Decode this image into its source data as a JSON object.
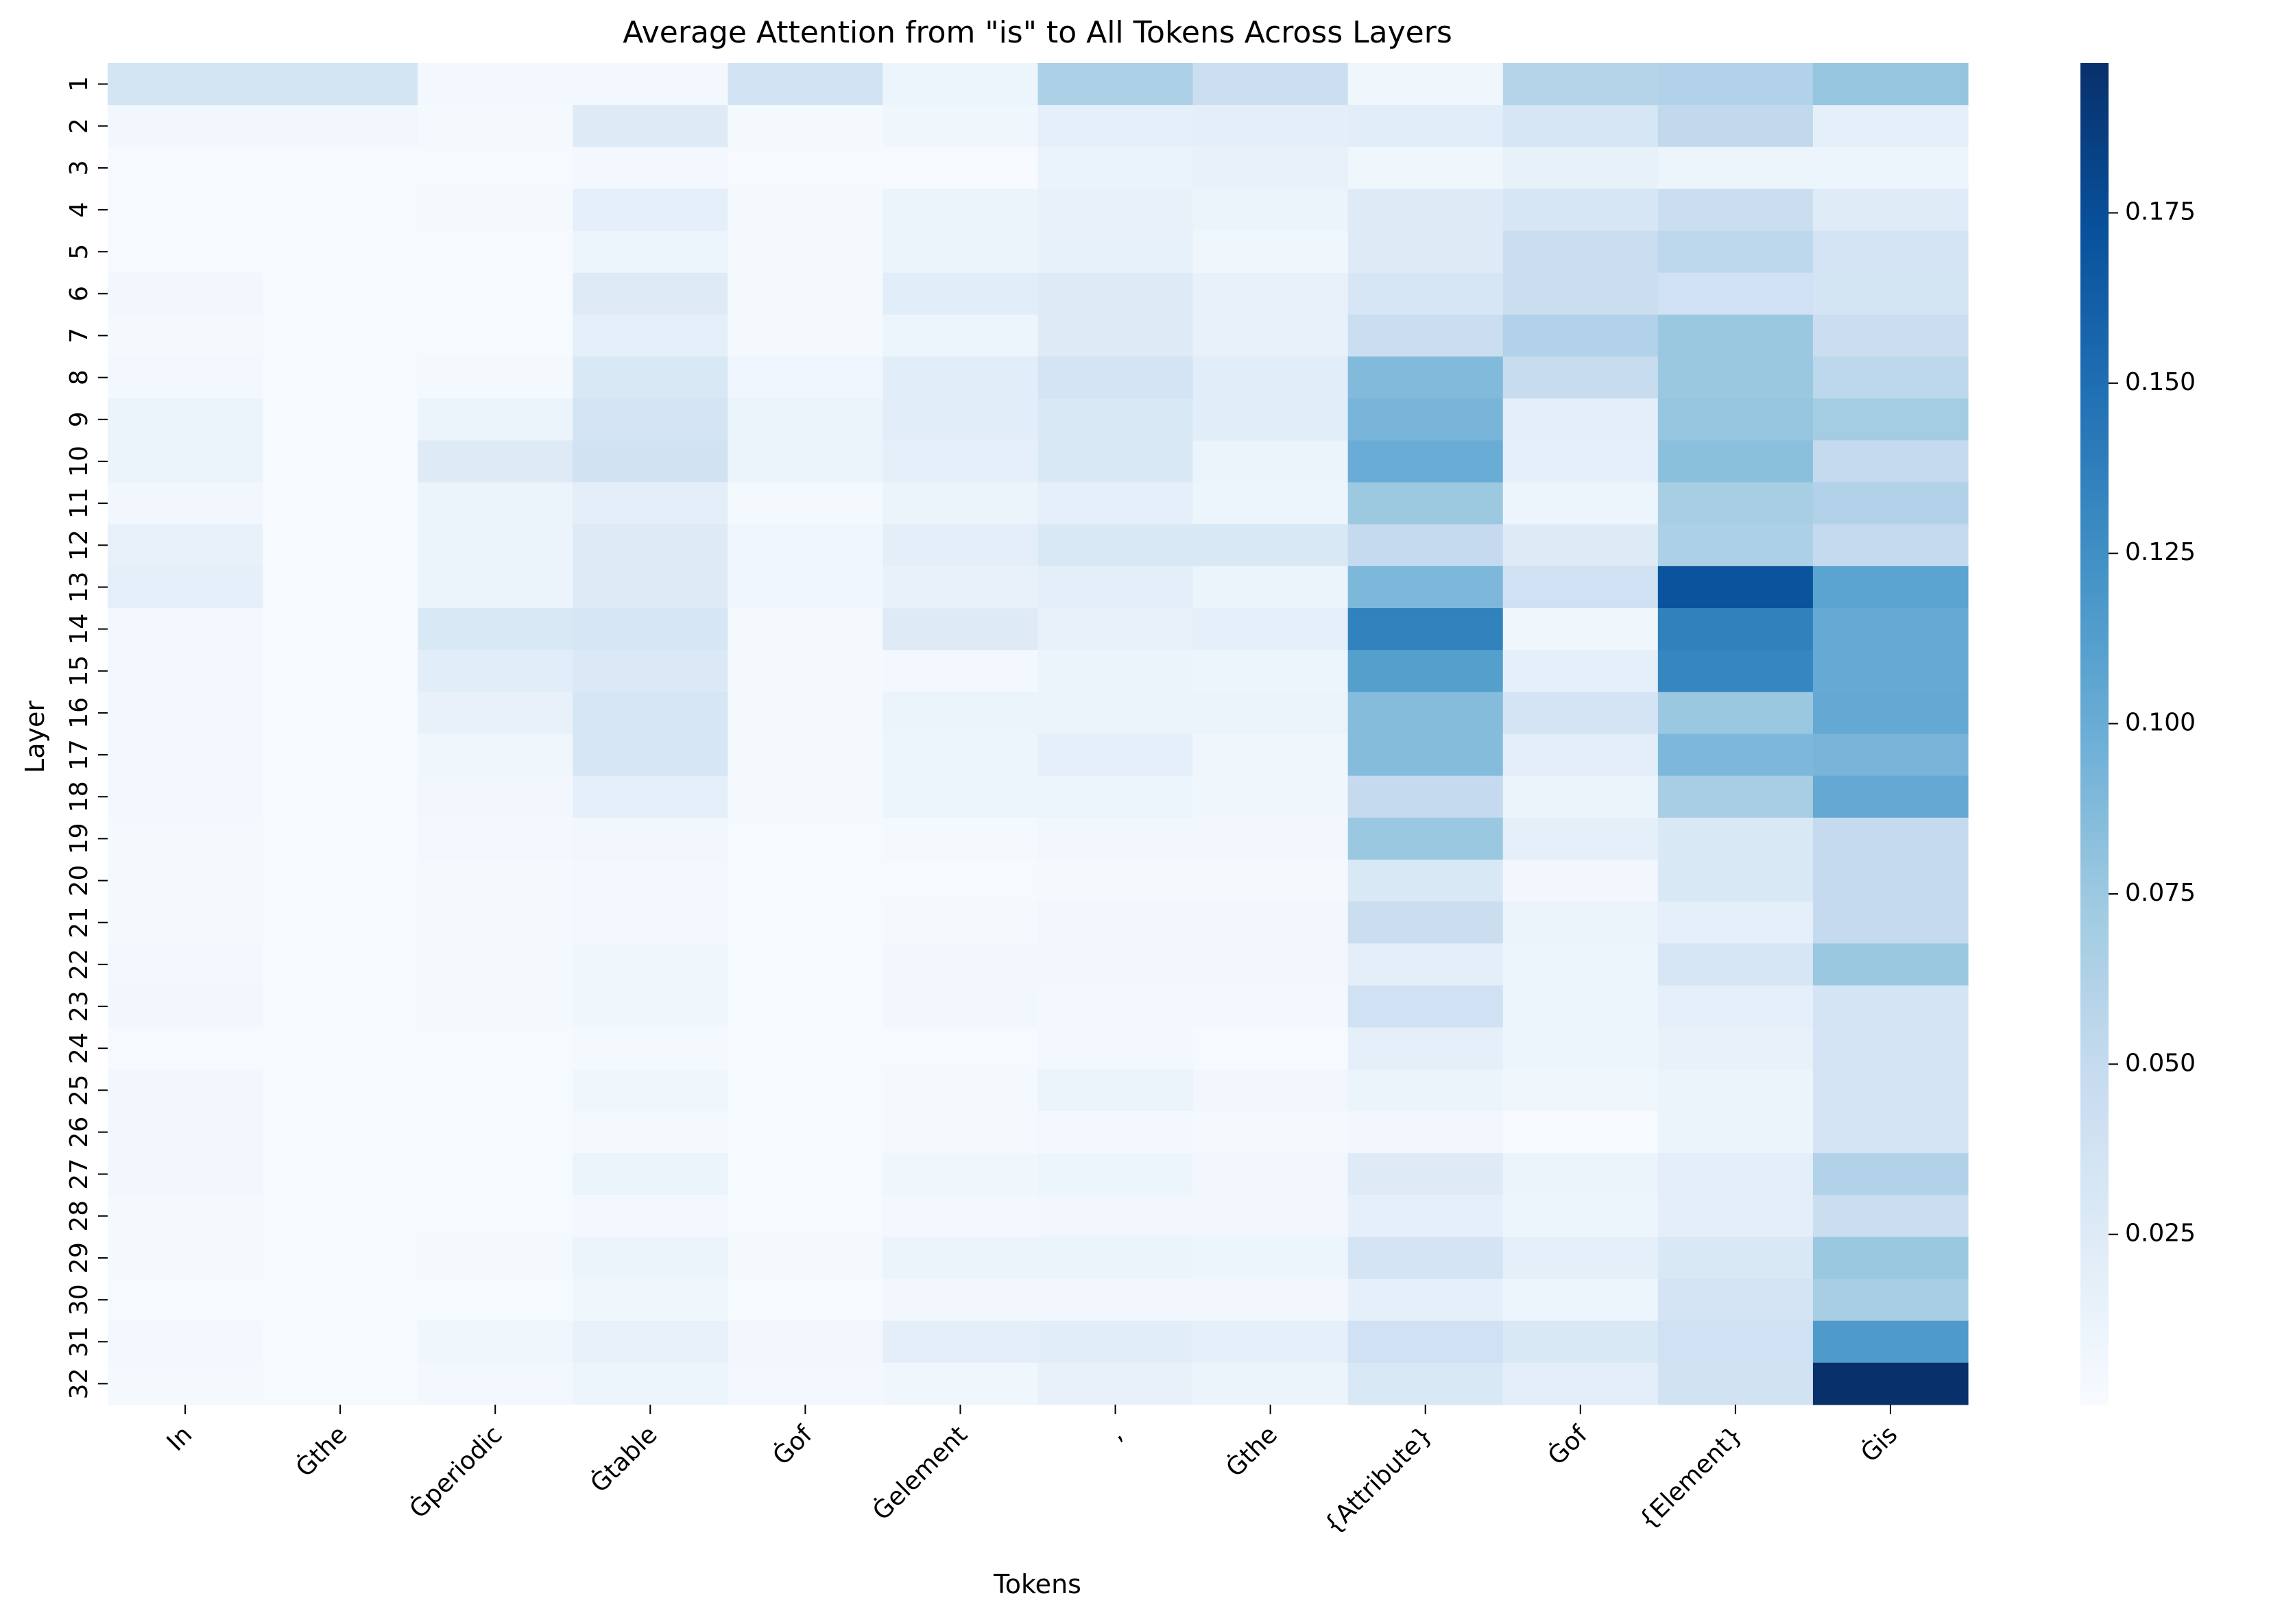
{
  "chart_data": {
    "type": "heatmap",
    "title": "Average Attention from \"is\" to All Tokens Across Layers",
    "xlabel": "Tokens",
    "ylabel": "Layer",
    "x_categories": [
      "In",
      "Ġthe",
      "Ġperiodic",
      "Ġtable",
      "Ġof",
      "Ġelement",
      ",",
      "Ġthe",
      "{Attribute}",
      "Ġof",
      "{Element}",
      "Ġis"
    ],
    "y_categories": [
      "1",
      "2",
      "3",
      "4",
      "5",
      "6",
      "7",
      "8",
      "9",
      "10",
      "11",
      "12",
      "13",
      "14",
      "15",
      "16",
      "17",
      "18",
      "19",
      "20",
      "21",
      "22",
      "23",
      "24",
      "25",
      "26",
      "27",
      "28",
      "29",
      "30",
      "31",
      "32"
    ],
    "colormap": "Blues",
    "color_range": [
      0.0,
      0.197
    ],
    "colorbar_ticks": [
      "0.025",
      "0.050",
      "0.075",
      "0.100",
      "0.125",
      "0.150",
      "0.175"
    ],
    "colorbar_tick_values": [
      0.025,
      0.05,
      0.075,
      0.1,
      0.125,
      0.15,
      0.175
    ],
    "values": [
      [
        0.036,
        0.036,
        0.004,
        0.004,
        0.037,
        0.01,
        0.065,
        0.043,
        0.008,
        0.06,
        0.062,
        0.078
      ],
      [
        0.006,
        0.006,
        0.003,
        0.025,
        0.003,
        0.008,
        0.018,
        0.02,
        0.022,
        0.033,
        0.052,
        0.018
      ],
      [
        0.001,
        0.001,
        0.001,
        0.004,
        0.001,
        0.001,
        0.013,
        0.015,
        0.008,
        0.016,
        0.01,
        0.01
      ],
      [
        0.001,
        0.001,
        0.003,
        0.018,
        0.003,
        0.012,
        0.015,
        0.012,
        0.025,
        0.033,
        0.045,
        0.024
      ],
      [
        0.001,
        0.001,
        0.001,
        0.01,
        0.003,
        0.012,
        0.016,
        0.008,
        0.025,
        0.045,
        0.055,
        0.035
      ],
      [
        0.006,
        0.001,
        0.001,
        0.025,
        0.003,
        0.022,
        0.025,
        0.015,
        0.032,
        0.045,
        0.04,
        0.036
      ],
      [
        0.003,
        0.001,
        0.002,
        0.018,
        0.003,
        0.01,
        0.025,
        0.015,
        0.045,
        0.062,
        0.076,
        0.045
      ],
      [
        0.004,
        0.001,
        0.003,
        0.03,
        0.007,
        0.022,
        0.035,
        0.022,
        0.088,
        0.048,
        0.076,
        0.055
      ],
      [
        0.012,
        0.001,
        0.012,
        0.035,
        0.012,
        0.022,
        0.03,
        0.022,
        0.092,
        0.02,
        0.078,
        0.07
      ],
      [
        0.012,
        0.001,
        0.025,
        0.038,
        0.012,
        0.018,
        0.03,
        0.012,
        0.1,
        0.018,
        0.083,
        0.05
      ],
      [
        0.006,
        0.001,
        0.012,
        0.02,
        0.003,
        0.012,
        0.018,
        0.01,
        0.075,
        0.01,
        0.068,
        0.062
      ],
      [
        0.015,
        0.001,
        0.012,
        0.025,
        0.007,
        0.02,
        0.03,
        0.03,
        0.05,
        0.025,
        0.065,
        0.05
      ],
      [
        0.018,
        0.001,
        0.012,
        0.025,
        0.007,
        0.015,
        0.02,
        0.012,
        0.09,
        0.04,
        0.17,
        0.108
      ],
      [
        0.004,
        0.001,
        0.03,
        0.032,
        0.003,
        0.025,
        0.015,
        0.018,
        0.135,
        0.008,
        0.136,
        0.102
      ],
      [
        0.004,
        0.001,
        0.022,
        0.028,
        0.003,
        0.005,
        0.012,
        0.01,
        0.112,
        0.018,
        0.132,
        0.102
      ],
      [
        0.004,
        0.001,
        0.015,
        0.033,
        0.003,
        0.012,
        0.012,
        0.012,
        0.086,
        0.035,
        0.076,
        0.103
      ],
      [
        0.004,
        0.001,
        0.008,
        0.033,
        0.003,
        0.01,
        0.018,
        0.008,
        0.086,
        0.02,
        0.09,
        0.092
      ],
      [
        0.004,
        0.001,
        0.006,
        0.018,
        0.003,
        0.01,
        0.01,
        0.008,
        0.05,
        0.012,
        0.068,
        0.103
      ],
      [
        0.003,
        0.002,
        0.004,
        0.006,
        0.002,
        0.003,
        0.006,
        0.006,
        0.076,
        0.018,
        0.03,
        0.05
      ],
      [
        0.003,
        0.002,
        0.003,
        0.004,
        0.002,
        0.002,
        0.003,
        0.003,
        0.03,
        0.006,
        0.03,
        0.05
      ],
      [
        0.003,
        0.002,
        0.003,
        0.004,
        0.002,
        0.003,
        0.006,
        0.006,
        0.045,
        0.012,
        0.018,
        0.05
      ],
      [
        0.004,
        0.002,
        0.003,
        0.008,
        0.002,
        0.006,
        0.006,
        0.006,
        0.02,
        0.01,
        0.033,
        0.076
      ],
      [
        0.006,
        0.002,
        0.003,
        0.008,
        0.002,
        0.006,
        0.004,
        0.004,
        0.04,
        0.01,
        0.018,
        0.035
      ],
      [
        0.001,
        0.001,
        0.001,
        0.003,
        0.001,
        0.002,
        0.004,
        0.002,
        0.018,
        0.01,
        0.015,
        0.035
      ],
      [
        0.006,
        0.002,
        0.002,
        0.008,
        0.002,
        0.003,
        0.012,
        0.006,
        0.012,
        0.008,
        0.012,
        0.035
      ],
      [
        0.006,
        0.002,
        0.002,
        0.003,
        0.002,
        0.003,
        0.004,
        0.003,
        0.006,
        0.001,
        0.012,
        0.035
      ],
      [
        0.006,
        0.002,
        0.002,
        0.012,
        0.002,
        0.008,
        0.01,
        0.006,
        0.025,
        0.012,
        0.02,
        0.062
      ],
      [
        0.003,
        0.002,
        0.002,
        0.004,
        0.002,
        0.004,
        0.006,
        0.006,
        0.018,
        0.01,
        0.02,
        0.045
      ],
      [
        0.003,
        0.002,
        0.003,
        0.012,
        0.003,
        0.012,
        0.012,
        0.01,
        0.035,
        0.018,
        0.03,
        0.076
      ],
      [
        0.002,
        0.002,
        0.002,
        0.008,
        0.002,
        0.006,
        0.006,
        0.006,
        0.018,
        0.01,
        0.035,
        0.068
      ],
      [
        0.004,
        0.002,
        0.008,
        0.015,
        0.006,
        0.02,
        0.022,
        0.018,
        0.04,
        0.03,
        0.04,
        0.116
      ],
      [
        0.003,
        0.002,
        0.004,
        0.01,
        0.004,
        0.008,
        0.015,
        0.012,
        0.03,
        0.02,
        0.038,
        0.197
      ]
    ]
  }
}
